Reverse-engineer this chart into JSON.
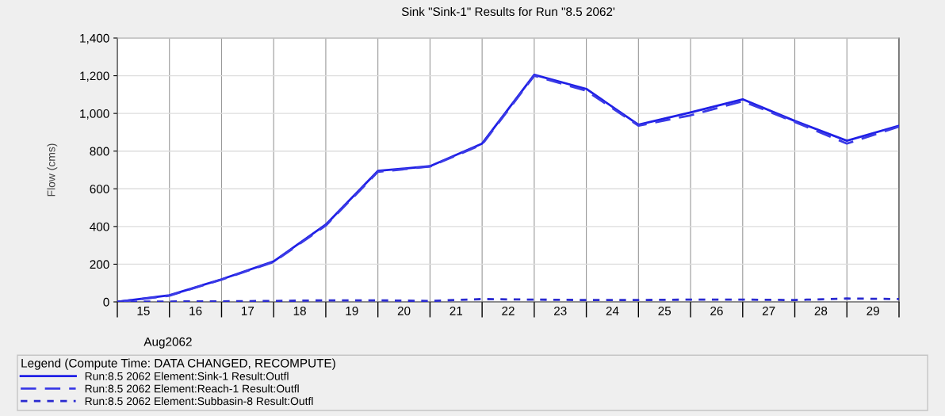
{
  "chart_data": {
    "type": "line",
    "title": "Sink \"Sink-1\" Results for Run \"8.5 2062'",
    "ylabel": "Flow (cms)",
    "legend_title": "Legend (Compute Time: DATA CHANGED, RECOMPUTE)",
    "annotations": [
      "Aug2062"
    ],
    "x": [
      "2062-08-15",
      "2062-08-16",
      "2062-08-17",
      "2062-08-18",
      "2062-08-19",
      "2062-08-20",
      "2062-08-21",
      "2062-08-22",
      "2062-08-23",
      "2062-08-24",
      "2062-08-25",
      "2062-08-26",
      "2062-08-27",
      "2062-08-28",
      "2062-08-29",
      "2062-08-30"
    ],
    "series": [
      {
        "name": "Run:8.5 2062 Element:Sink-1 Result:Outfl",
        "color": "#1f1fe6",
        "line_style": "solid",
        "values": [
          0,
          35,
          120,
          215,
          410,
          695,
          720,
          840,
          1205,
          1130,
          940,
          1005,
          1075,
          960,
          855,
          935
        ]
      },
      {
        "name": "Run:8.5 2062 Element:Reach-1 Result:Outfl",
        "color": "#3a3ae6",
        "line_style": "dashed",
        "values": [
          0,
          33,
          118,
          212,
          405,
          690,
          718,
          835,
          1200,
          1120,
          935,
          990,
          1065,
          955,
          840,
          930
        ]
      },
      {
        "name": "Run:8.5 2062 Element:Subbasin-8 Result:Outfl",
        "color": "#2a2ad0",
        "line_style": "dotted",
        "values": [
          0,
          2,
          3,
          5,
          8,
          8,
          5,
          15,
          12,
          10,
          10,
          12,
          12,
          10,
          18,
          15
        ]
      }
    ],
    "xlim": [
      "2062-08-15",
      "2062-08-30"
    ],
    "xticks": [
      {
        "value": "2062-08-15",
        "label": null
      },
      {
        "value": "2062-08-15T12:00",
        "label": "15"
      },
      {
        "value": "2062-08-16",
        "label": null
      },
      {
        "value": "2062-08-16T12:00",
        "label": "16"
      },
      {
        "value": "2062-08-17",
        "label": null
      },
      {
        "value": "2062-08-17T12:00",
        "label": "17"
      },
      {
        "value": "2062-08-18",
        "label": null
      },
      {
        "value": "2062-08-18T12:00",
        "label": "18"
      },
      {
        "value": "2062-08-19",
        "label": null
      },
      {
        "value": "2062-08-19T12:00",
        "label": "19"
      },
      {
        "value": "2062-08-20",
        "label": null
      },
      {
        "value": "2062-08-20T12:00",
        "label": "20"
      },
      {
        "value": "2062-08-21",
        "label": null
      },
      {
        "value": "2062-08-21T12:00",
        "label": "21"
      },
      {
        "value": "2062-08-22",
        "label": null
      },
      {
        "value": "2062-08-22T12:00",
        "label": "22"
      },
      {
        "value": "2062-08-23",
        "label": null
      },
      {
        "value": "2062-08-23T12:00",
        "label": "23"
      },
      {
        "value": "2062-08-24",
        "label": null
      },
      {
        "value": "2062-08-24T12:00",
        "label": "24"
      },
      {
        "value": "2062-08-25",
        "label": null
      },
      {
        "value": "2062-08-25T12:00",
        "label": "25"
      },
      {
        "value": "2062-08-26",
        "label": null
      },
      {
        "value": "2062-08-26T12:00",
        "label": "26"
      },
      {
        "value": "2062-08-27",
        "label": null
      },
      {
        "value": "2062-08-27T12:00",
        "label": "27"
      },
      {
        "value": "2062-08-28",
        "label": null
      },
      {
        "value": "2062-08-28T12:00",
        "label": "28"
      },
      {
        "value": "2062-08-29",
        "label": null
      },
      {
        "value": "2062-08-29T12:00",
        "label": "29"
      },
      {
        "value": "2062-08-30",
        "label": null
      }
    ],
    "ylim": [
      0,
      1400
    ],
    "yticks": [
      {
        "value": 0,
        "label": "0"
      },
      {
        "value": 200,
        "label": "200"
      },
      {
        "value": 400,
        "label": "400"
      },
      {
        "value": 600,
        "label": "600"
      },
      {
        "value": 800,
        "label": "800"
      },
      {
        "value": 1000,
        "label": "1,000"
      },
      {
        "value": 1200,
        "label": "1,200"
      },
      {
        "value": 1400,
        "label": "1,400"
      }
    ],
    "grid": true,
    "legend": "bottom",
    "marker": "none"
  }
}
